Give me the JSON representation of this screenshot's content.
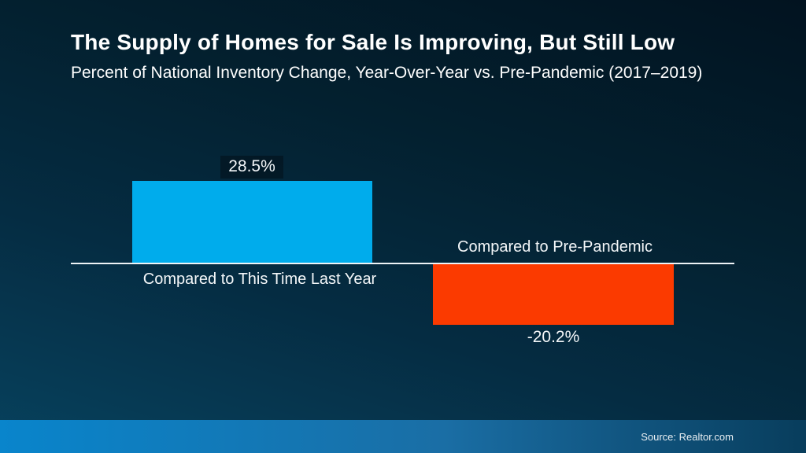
{
  "header": {
    "title": "The Supply of Homes for Sale Is Improving, But Still Low",
    "subtitle": "Percent of National Inventory Change, Year-Over-Year vs. Pre-Pandemic (2017–2019)"
  },
  "chart_data": {
    "type": "bar",
    "title": "The Supply of Homes for Sale Is Improving, But Still Low",
    "subtitle": "Percent of National Inventory Change, Year-Over-Year vs. Pre-Pandemic (2017–2019)",
    "categories": [
      "Compared to This Time Last Year",
      "Compared to Pre-Pandemic"
    ],
    "values": [
      28.5,
      -20.2
    ],
    "value_labels": [
      "28.5%",
      "-20.2%"
    ],
    "xlabel": "",
    "ylabel": "",
    "ylim": [
      -25,
      32
    ],
    "baseline": 0,
    "grid": false,
    "legend": "none",
    "bar_colors": [
      "#00acec",
      "#fb3a00"
    ],
    "axis_line_color": "#ffffff"
  },
  "colors": {
    "background_top": "#021320",
    "background_bottom": "#07425e",
    "positive_bar": "#00acec",
    "negative_bar": "#fb3a00",
    "axis_line": "#eef3f6",
    "footer_gradient_left": "#0985cc",
    "footer_gradient_right": "#083d5c",
    "text": "#ffffff"
  },
  "footer": {
    "source": "Source: Realtor.com"
  }
}
